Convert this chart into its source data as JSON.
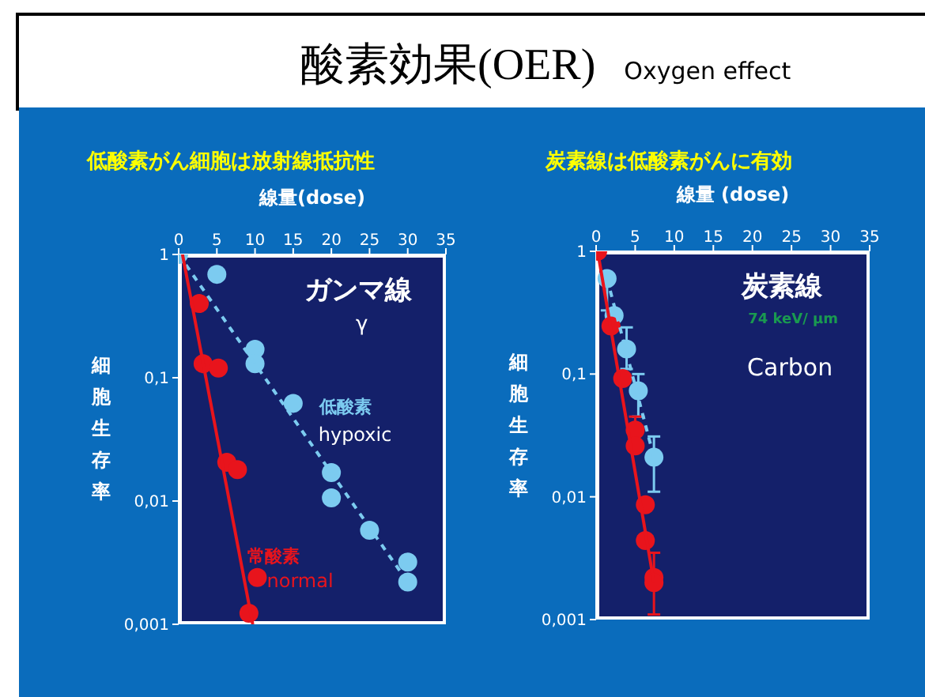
{
  "chart_data": [
    {
      "type": "scatter",
      "title": "低酸素がん細胞は放射線抵抗性",
      "xlabel": "線量(dose)",
      "ylabel": "細胞生存率",
      "log": "y",
      "xlim": [
        0,
        35
      ],
      "xticks": [
        0,
        5,
        10,
        15,
        20,
        25,
        30,
        35
      ],
      "ylim": [
        0.001,
        1
      ],
      "yticks": [
        1,
        {
          "value": 0.1,
          "label": "0,1"
        },
        {
          "value": 0.01,
          "label": "0,01"
        },
        {
          "value": 0.001,
          "label": "0,001"
        }
      ],
      "annotations": [
        "酸素効果(OER)",
        "Oxygen effect",
        "ガンマ線",
        "γ",
        "低酸素",
        "hypoxic",
        "常酸素",
        "normal"
      ],
      "series": [
        {
          "marker": "circle",
          "color": "#7ccbf0",
          "x": [
            0,
            5,
            10,
            10,
            15,
            20,
            20,
            25,
            30,
            30
          ],
          "values": [
            1,
            0.69,
            0.17,
            0.13,
            0.062,
            0.017,
            0.0106,
            0.0058,
            0.0032,
            0.0022
          ]
        },
        {
          "marker": "circle",
          "color": "#e8141c",
          "x": [
            2.7,
            3.2,
            5.2,
            6.3,
            7.7,
            10.3,
            9.2
          ],
          "values": [
            0.4,
            0.13,
            0.12,
            0.0206,
            0.018,
            0.0024,
            0.00123
          ]
        },
        {
          "type": "line",
          "marker": "none",
          "line_style": "dashed",
          "color": "#7ccbf0",
          "x": [
            0,
            30
          ],
          "values": [
            1,
            0.0022
          ]
        },
        {
          "type": "line",
          "marker": "none",
          "line_style": "solid",
          "color": "#e8141c",
          "x": [
            0.5,
            9.7
          ],
          "values": [
            1,
            0.001
          ]
        }
      ]
    },
    {
      "type": "scatter",
      "title": "炭素線は低酸素がんに有効",
      "xlabel": "線量 (dose)",
      "ylabel": "細胞生存率",
      "log": "y",
      "xlim": [
        0,
        35
      ],
      "xticks": [
        0,
        5,
        10,
        15,
        20,
        25,
        30,
        35
      ],
      "ylim": [
        0.001,
        1
      ],
      "yticks": [
        1,
        {
          "value": 0.1,
          "label": "0,1"
        },
        {
          "value": 0.01,
          "label": "0,01"
        },
        {
          "value": 0.001,
          "label": "0,001"
        }
      ],
      "annotations": [
        "炭素線",
        "74 keV/ μm",
        "Carbon"
      ],
      "series": [
        {
          "marker": "circle",
          "color": "#7ccbf0",
          "x": [
            1.4,
            2.3,
            3.9,
            5.4,
            7.4
          ],
          "values": [
            0.6,
            0.3,
            0.16,
            0.073,
            0.021
          ],
          "errors": [
            [
              0.33,
              0.6
            ],
            null,
            [
              0.11,
              0.24
            ],
            [
              0.045,
              0.1
            ],
            [
              0.011,
              0.031
            ]
          ]
        },
        {
          "marker": "circle",
          "color": "#e8141c",
          "x": [
            0.2,
            1.9,
            3.4,
            5.0,
            5.0,
            6.3,
            6.3,
            7.4,
            7.4
          ],
          "values": [
            1,
            0.246,
            0.092,
            0.035,
            0.026,
            0.0086,
            0.0044,
            0.0022,
            0.002
          ],
          "errors": [
            null,
            null,
            null,
            [
              0.035,
              0.045
            ],
            null,
            null,
            null,
            [
              0.0011,
              0.0035
            ],
            null
          ]
        },
        {
          "type": "line",
          "marker": "none",
          "line_style": "dashed",
          "color": "#7ccbf0",
          "x": [
            1.4,
            7.4
          ],
          "values": [
            0.6,
            0.021
          ]
        },
        {
          "type": "line",
          "marker": "none",
          "line_style": "solid",
          "color": "#e8141c",
          "x": [
            0.2,
            7.4
          ],
          "values": [
            1,
            0.002
          ]
        }
      ]
    }
  ]
}
